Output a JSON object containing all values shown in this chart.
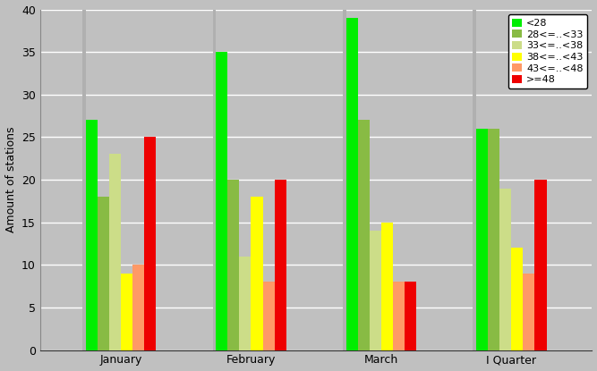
{
  "categories": [
    "January",
    "February",
    "March",
    "I Quarter"
  ],
  "series": [
    {
      "label": "<28",
      "color": "#00ee00",
      "values": [
        27,
        35,
        39,
        26
      ]
    },
    {
      "label": "28<=..<33",
      "color": "#88bb44",
      "values": [
        18,
        20,
        27,
        26
      ]
    },
    {
      "label": "33<=..<38",
      "color": "#ccdd88",
      "values": [
        23,
        11,
        14,
        19
      ]
    },
    {
      "label": "38<=..<43",
      "color": "#ffff00",
      "values": [
        9,
        18,
        15,
        12
      ]
    },
    {
      "label": "43<=..<48",
      "color": "#ff9966",
      "values": [
        10,
        8,
        8,
        9
      ]
    },
    {
      "label": ">=48",
      "color": "#ee0000",
      "values": [
        25,
        20,
        8,
        20
      ]
    }
  ],
  "separator_color": "#b0b0b0",
  "ylabel": "Amount of stations",
  "ylim": [
    0,
    40
  ],
  "yticks": [
    0,
    5,
    10,
    15,
    20,
    25,
    30,
    35,
    40
  ],
  "background_color": "#c0c0c0",
  "plot_area_color": "#c0c0c0",
  "grid_color": "#ffffff",
  "bar_width": 0.09,
  "axis_fontsize": 9,
  "legend_fontsize": 8,
  "figsize": [
    6.67,
    4.15
  ],
  "dpi": 100
}
